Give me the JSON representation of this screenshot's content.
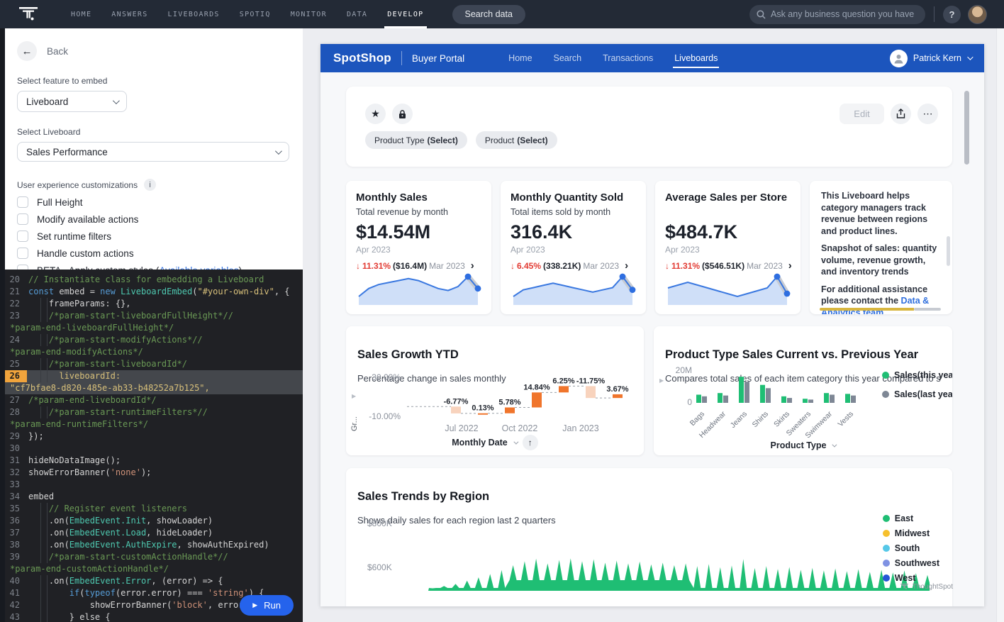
{
  "topnav": {
    "logo": "ThoughtSpot",
    "items": [
      {
        "label": "HOME",
        "active": false
      },
      {
        "label": "ANSWERS",
        "active": false
      },
      {
        "label": "LIVEBOARDS",
        "active": false
      },
      {
        "label": "SPOTIQ",
        "active": false
      },
      {
        "label": "MONITOR",
        "active": false
      },
      {
        "label": "DATA",
        "active": false
      },
      {
        "label": "DEVELOP",
        "active": true
      }
    ],
    "search_button": "Search data",
    "ask_placeholder": "Ask any business question you have",
    "help": "?"
  },
  "panel": {
    "back": "Back",
    "feature_label": "Select feature to embed",
    "feature_value": "Liveboard",
    "liveboard_label": "Select Liveboard",
    "liveboard_value": "Sales Performance",
    "customizations_label": "User experience customizations",
    "info": "i",
    "checkboxes": [
      {
        "label": "Full Height",
        "checked": false
      },
      {
        "label": "Modify available actions",
        "checked": false
      },
      {
        "label": "Set runtime filters",
        "checked": false
      },
      {
        "label": "Handle custom actions",
        "checked": false
      },
      {
        "label": "BETA - Apply custom styles (",
        "link": "Available variables",
        "after": ")",
        "checked": false
      }
    ],
    "run_label": "Run"
  },
  "icons": {
    "star": "★",
    "more": "⋯",
    "back": "←",
    "play": "▶",
    "sort_asc": "↑",
    "down_arrow": "↓",
    "chevron_right": "›",
    "expand": "▶"
  },
  "code": {
    "rows": [
      {
        "n": "20",
        "seg": [
          [
            "cm",
            "// Instantiate class for embedding a Liveboard"
          ]
        ]
      },
      {
        "n": "21",
        "seg": [
          [
            "kw",
            "const"
          ],
          [
            "pl",
            " embed = "
          ],
          [
            "kw",
            "new"
          ],
          [
            "pl",
            " "
          ],
          [
            "ty",
            "LiveboardEmbed"
          ],
          [
            "pl",
            "("
          ],
          [
            "sy",
            "\"#your-own-div\""
          ],
          [
            "pl",
            ", {"
          ]
        ]
      },
      {
        "n": "22",
        "seg": [
          [
            "pl",
            "    frameParams: {},"
          ]
        ]
      },
      {
        "n": "23",
        "seg": [
          [
            "cm",
            "    /*param-start-liveboardFullHeight*//"
          ]
        ]
      },
      {
        "w": 1,
        "seg": [
          [
            "cm",
            "*param-end-liveboardFullHeight*/"
          ]
        ]
      },
      {
        "n": "24",
        "seg": [
          [
            "cm",
            "    /*param-start-modifyActions*//"
          ]
        ]
      },
      {
        "w": 1,
        "seg": [
          [
            "cm",
            "*param-end-modifyActions*/"
          ]
        ]
      },
      {
        "n": "25",
        "seg": [
          [
            "cm",
            "    /*param-start-liveboardId*/"
          ]
        ]
      },
      {
        "n": "26",
        "h": 1,
        "seg": [
          [
            "sy",
            "      liveboardId:"
          ]
        ]
      },
      {
        "w": 1,
        "hw": 1,
        "seg": [
          [
            "sy",
            "\"cf7bfae8-d820-485e-ab33-b48252a7b125\","
          ]
        ]
      },
      {
        "n": "27",
        "seg": [
          [
            "cm",
            "/*param-end-liveboardId*/"
          ]
        ]
      },
      {
        "n": "28",
        "seg": [
          [
            "cm",
            "    /*param-start-runtimeFilters*//"
          ]
        ]
      },
      {
        "w": 1,
        "seg": [
          [
            "cm",
            "*param-end-runtimeFilters*/"
          ]
        ]
      },
      {
        "n": "29",
        "seg": [
          [
            "pl",
            "});"
          ]
        ]
      },
      {
        "n": "30",
        "seg": []
      },
      {
        "n": "31",
        "seg": [
          [
            "pl",
            "hideNoDataImage();"
          ]
        ]
      },
      {
        "n": "32",
        "seg": [
          [
            "pl",
            "showErrorBanner("
          ],
          [
            "so",
            "'none'"
          ],
          [
            "pl",
            ");"
          ]
        ]
      },
      {
        "n": "33",
        "seg": []
      },
      {
        "n": "34",
        "seg": [
          [
            "pl",
            "embed"
          ]
        ]
      },
      {
        "n": "35",
        "seg": [
          [
            "cm",
            "    // Register event listeners"
          ]
        ]
      },
      {
        "n": "36",
        "seg": [
          [
            "pl",
            "    .on("
          ],
          [
            "ty",
            "EmbedEvent.Init"
          ],
          [
            "pl",
            ", showLoader)"
          ]
        ]
      },
      {
        "n": "37",
        "seg": [
          [
            "pl",
            "    .on("
          ],
          [
            "ty",
            "EmbedEvent.Load"
          ],
          [
            "pl",
            ", hideLoader)"
          ]
        ]
      },
      {
        "n": "38",
        "seg": [
          [
            "pl",
            "    .on("
          ],
          [
            "ty",
            "EmbedEvent.AuthExpire"
          ],
          [
            "pl",
            ", showAuthExpired)"
          ]
        ]
      },
      {
        "n": "39",
        "seg": [
          [
            "cm",
            "    /*param-start-customActionHandle*//"
          ]
        ]
      },
      {
        "w": 1,
        "seg": [
          [
            "cm",
            "*param-end-customActionHandle*/"
          ]
        ]
      },
      {
        "n": "40",
        "seg": [
          [
            "pl",
            "    .on("
          ],
          [
            "ty",
            "EmbedEvent.Error"
          ],
          [
            "pl",
            ", (error) => {"
          ]
        ]
      },
      {
        "n": "41",
        "seg": [
          [
            "pl",
            "        "
          ],
          [
            "kw",
            "if"
          ],
          [
            "pl",
            "("
          ],
          [
            "kw",
            "typeof"
          ],
          [
            "pl",
            "(error.error) === "
          ],
          [
            "so",
            "'string'"
          ],
          [
            "pl",
            ") {"
          ]
        ]
      },
      {
        "n": "42",
        "seg": [
          [
            "pl",
            "            showErrorBanner("
          ],
          [
            "so",
            "'block'"
          ],
          [
            "pl",
            ", error."
          ]
        ]
      },
      {
        "n": "43",
        "seg": [
          [
            "pl",
            "        } else {"
          ]
        ]
      }
    ]
  },
  "embed": {
    "brand": "SpotShop",
    "portal": "Buyer Portal",
    "nav": [
      {
        "label": "Home",
        "active": false
      },
      {
        "label": "Search",
        "active": false
      },
      {
        "label": "Transactions",
        "active": false
      },
      {
        "label": "Liveboards",
        "active": true
      }
    ],
    "user": "Patrick Kern",
    "toolbar": {
      "edit": "Edit"
    },
    "filters": [
      {
        "name": "Product Type",
        "mode": "(Select)"
      },
      {
        "name": "Product",
        "mode": "(Select)"
      }
    ]
  },
  "kpis": [
    {
      "title": "Monthly Sales",
      "subtitle": "Total revenue by month",
      "value": "$14.54M",
      "date": "Apr 2023",
      "change_pct": "11.31%",
      "change_abs": "($16.4M)",
      "prev": "Mar 2023",
      "direction": "down",
      "spark": [
        40,
        44,
        46,
        47,
        48,
        49,
        48,
        46,
        44,
        43,
        45,
        50,
        44
      ]
    },
    {
      "title": "Monthly Quantity Sold",
      "subtitle": "Total items sold by month",
      "value": "316.4K",
      "date": "Apr 2023",
      "change_pct": "6.45%",
      "change_abs": "(338.21K)",
      "prev": "Mar 2023",
      "direction": "down",
      "spark": [
        42,
        45,
        46,
        47,
        48,
        47,
        46,
        45,
        44,
        45,
        46,
        51,
        45
      ]
    },
    {
      "title": "Average Sales per Store",
      "subtitle": "",
      "value": "$484.7K",
      "date": "Apr 2023",
      "change_pct": "11.31%",
      "change_abs": "($546.51K)",
      "prev": "Mar 2023",
      "direction": "down",
      "spark": [
        46,
        47,
        48,
        47,
        46,
        45,
        44,
        43,
        44,
        45,
        46,
        50,
        44
      ]
    }
  ],
  "note_card": {
    "paragraphs": [
      {
        "text": "This Liveboard helps category managers track revenue between regions and product lines."
      },
      {
        "text": "Snapshot of sales: quantity volume, revenue growth, and inventory trends"
      },
      {
        "text": "For additional assistance please contact the ",
        "link": "Data & Analytics team",
        "after": "."
      }
    ]
  },
  "chart_data": [
    {
      "id": "sales-growth-ytd",
      "type": "bar",
      "subtype": "waterfall",
      "title": "Sales Growth YTD",
      "subtitle": "Percentage change in sales monthly",
      "ylabel": "Gr...",
      "yticks": [
        "30.00%",
        "-10.00%"
      ],
      "ylim": [
        -10,
        30
      ],
      "xticks": [
        "Jul 2022",
        "Oct 2022",
        "Jan 2023"
      ],
      "values": [
        -6.77,
        0.13,
        5.78,
        14.84,
        6.25,
        -11.75,
        3.67
      ],
      "labels": [
        "-6.77%",
        "0.13%",
        "5.78%",
        "14.84%",
        "6.25%",
        "-11.75%",
        "3.67%"
      ],
      "footer": "Monthly Date",
      "colors": {
        "increase": "#f0752c",
        "decrease": "#f8d3bd"
      }
    },
    {
      "id": "product-type-sales",
      "type": "bar",
      "title": "Product Type Sales Current vs. Previous Year",
      "subtitle": "Compares total sales of each item category this year compared to sale...",
      "categories": [
        "Bags",
        "Headwear",
        "Jeans",
        "Shirts",
        "Skirts",
        "Sweaters",
        "Swimwear",
        "Vests"
      ],
      "series": [
        {
          "name": "Sales(this year)",
          "color": "#1fbe74",
          "values": [
            5,
            6,
            16,
            11,
            4,
            2.5,
            6,
            5.5
          ]
        },
        {
          "name": "Sales(last year)",
          "color": "#7e8795",
          "values": [
            4,
            4.5,
            13,
            9,
            3,
            2,
            5,
            4.5
          ]
        }
      ],
      "yticks": [
        "20M",
        "0"
      ],
      "ylim": [
        0,
        20
      ],
      "xlabel": "Product Type",
      "legend_position": "right"
    },
    {
      "id": "sales-trends-by-region",
      "type": "area",
      "title": "Sales Trends by Region",
      "subtitle": "Shows daily sales for each region last 2 quarters",
      "yticks": [
        "$800K",
        "$600K"
      ],
      "ylabel_unit": "K",
      "legend": [
        {
          "name": "East",
          "color": "#1fbe74"
        },
        {
          "name": "Midwest",
          "color": "#f6c02d"
        },
        {
          "name": "South",
          "color": "#56c8e8"
        },
        {
          "name": "Southwest",
          "color": "#7f92e3"
        },
        {
          "name": "West",
          "color": "#2457d6"
        }
      ],
      "visible_series": "East",
      "values_k": [
        505,
        515,
        525,
        540,
        555,
        570,
        588,
        610,
        628,
        640,
        618,
        634,
        641,
        628,
        637,
        622,
        631,
        618,
        627,
        614,
        622,
        610,
        618,
        606,
        615,
        601,
        609,
        638,
        597,
        606,
        593,
        602,
        589,
        598,
        586,
        595,
        583,
        592,
        580,
        589,
        577,
        586,
        574,
        565
      ]
    }
  ],
  "watermark": "ThoughtSpot"
}
